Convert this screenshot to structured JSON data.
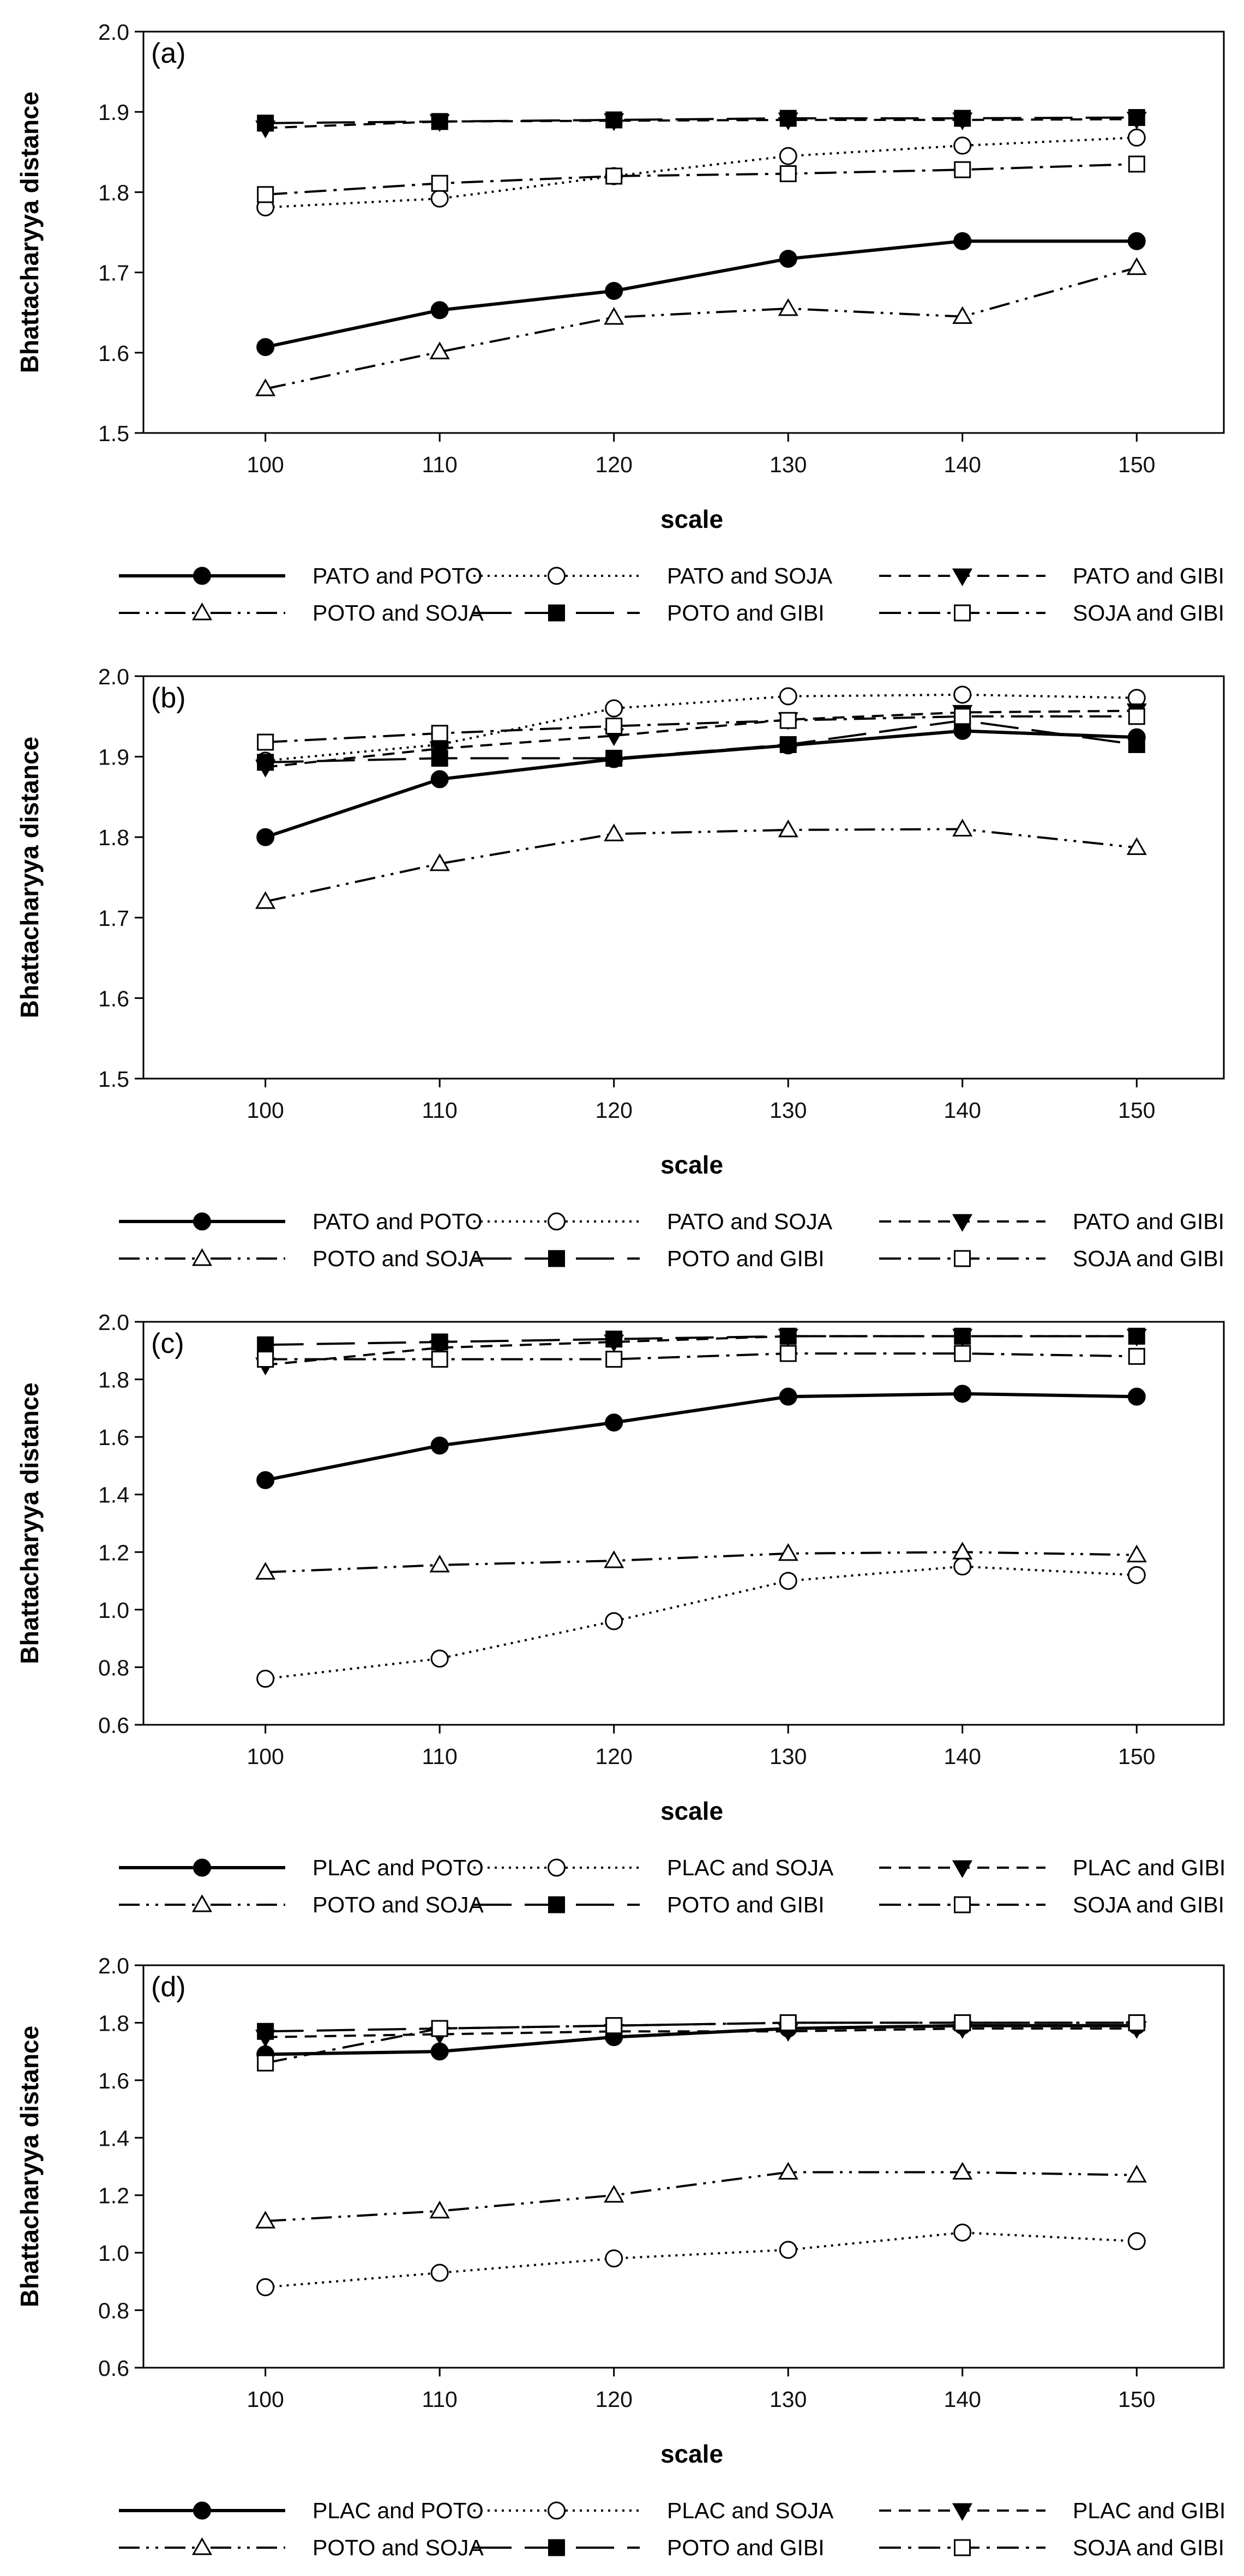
{
  "chart_data": [
    {
      "type": "line",
      "panel_label": "(a)",
      "xlabel": "scale",
      "ylabel": "Bhattacharyya distance",
      "x": [
        100,
        110,
        120,
        130,
        140,
        150
      ],
      "xlim": [
        93,
        155
      ],
      "ylim": [
        1.5,
        2.0
      ],
      "yticks": [
        1.5,
        1.6,
        1.7,
        1.8,
        1.9,
        2.0
      ],
      "ytick_labels": [
        "1.5",
        "1.6",
        "1.7",
        "1.8",
        "1.9",
        "2.0"
      ],
      "xticks": [
        100,
        110,
        120,
        130,
        140,
        150
      ],
      "xtick_labels": [
        "100",
        "110",
        "120",
        "130",
        "140",
        "150"
      ],
      "legend_position": "bottom",
      "series": [
        {
          "name": "PATO and POTO",
          "values": [
            1.607,
            1.653,
            1.677,
            1.717,
            1.739,
            1.739
          ],
          "marker": "filled-circle",
          "dash": "solid"
        },
        {
          "name": "PATO and SOJA",
          "values": [
            1.781,
            1.792,
            1.82,
            1.845,
            1.858,
            1.868
          ],
          "marker": "open-circle",
          "dash": "dotted"
        },
        {
          "name": "PATO and GIBI",
          "values": [
            1.88,
            1.888,
            1.889,
            1.89,
            1.89,
            1.891
          ],
          "marker": "filled-triangle-down",
          "dash": "short-dash"
        },
        {
          "name": "POTO and SOJA",
          "values": [
            1.555,
            1.601,
            1.644,
            1.655,
            1.645,
            1.706
          ],
          "marker": "open-triangle-up",
          "dash": "dash-dot-dot"
        },
        {
          "name": "POTO and GIBI",
          "values": [
            1.886,
            1.888,
            1.89,
            1.892,
            1.892,
            1.893
          ],
          "marker": "filled-square",
          "dash": "long-dash"
        },
        {
          "name": "SOJA and GIBI",
          "values": [
            1.797,
            1.811,
            1.82,
            1.823,
            1.828,
            1.835
          ],
          "marker": "open-square",
          "dash": "dash-dot"
        }
      ]
    },
    {
      "type": "line",
      "panel_label": "(b)",
      "xlabel": "scale",
      "ylabel": "Bhattacharyya distance",
      "x": [
        100,
        110,
        120,
        130,
        140,
        150
      ],
      "xlim": [
        93,
        155
      ],
      "ylim": [
        1.5,
        2.0
      ],
      "yticks": [
        1.5,
        1.6,
        1.7,
        1.8,
        1.9,
        2.0
      ],
      "ytick_labels": [
        "1.5",
        "1.6",
        "1.7",
        "1.8",
        "1.9",
        "2.0"
      ],
      "xticks": [
        100,
        110,
        120,
        130,
        140,
        150
      ],
      "xtick_labels": [
        "100",
        "110",
        "120",
        "130",
        "140",
        "150"
      ],
      "legend_position": "bottom",
      "series": [
        {
          "name": "PATO and POTO",
          "values": [
            1.8,
            1.872,
            1.897,
            1.914,
            1.932,
            1.924
          ],
          "marker": "filled-circle",
          "dash": "solid"
        },
        {
          "name": "PATO and SOJA",
          "values": [
            1.895,
            1.915,
            1.96,
            1.975,
            1.977,
            1.973
          ],
          "marker": "open-circle",
          "dash": "dotted"
        },
        {
          "name": "PATO and GIBI",
          "values": [
            1.887,
            1.91,
            1.926,
            1.946,
            1.955,
            1.957
          ],
          "marker": "filled-triangle-down",
          "dash": "short-dash"
        },
        {
          "name": "POTO and SOJA",
          "values": [
            1.72,
            1.767,
            1.804,
            1.809,
            1.81,
            1.787
          ],
          "marker": "open-triangle-up",
          "dash": "dash-dot-dot"
        },
        {
          "name": "POTO and GIBI",
          "values": [
            1.893,
            1.898,
            1.898,
            1.915,
            1.945,
            1.915
          ],
          "marker": "filled-square",
          "dash": "long-dash"
        },
        {
          "name": "SOJA and GIBI",
          "values": [
            1.918,
            1.929,
            1.938,
            1.945,
            1.95,
            1.95
          ],
          "marker": "open-square",
          "dash": "dash-dot"
        }
      ]
    },
    {
      "type": "line",
      "panel_label": "(c)",
      "xlabel": "scale",
      "ylabel": "Bhattacharyya distance",
      "x": [
        100,
        110,
        120,
        130,
        140,
        150
      ],
      "xlim": [
        93,
        155
      ],
      "ylim": [
        0.6,
        2.0
      ],
      "yticks": [
        0.6,
        0.8,
        1.0,
        1.2,
        1.4,
        1.6,
        1.8,
        2.0
      ],
      "ytick_labels": [
        "0.6",
        "0.8",
        "1.0",
        "1.2",
        "1.4",
        "1.6",
        "1.8",
        "2.0"
      ],
      "xticks": [
        100,
        110,
        120,
        130,
        140,
        150
      ],
      "xtick_labels": [
        "100",
        "110",
        "120",
        "130",
        "140",
        "150"
      ],
      "legend_position": "bottom",
      "series": [
        {
          "name": "PLAC and POTO",
          "values": [
            1.45,
            1.57,
            1.65,
            1.74,
            1.75,
            1.74
          ],
          "marker": "filled-circle",
          "dash": "solid"
        },
        {
          "name": "PLAC and SOJA",
          "values": [
            0.76,
            0.83,
            0.96,
            1.1,
            1.15,
            1.12
          ],
          "marker": "open-circle",
          "dash": "dotted"
        },
        {
          "name": "PLAC and GIBI",
          "values": [
            1.85,
            1.91,
            1.93,
            1.95,
            1.95,
            1.95
          ],
          "marker": "filled-triangle-down",
          "dash": "short-dash"
        },
        {
          "name": "POTO and SOJA",
          "values": [
            1.13,
            1.155,
            1.17,
            1.195,
            1.2,
            1.19
          ],
          "marker": "open-triangle-up",
          "dash": "dash-dot-dot"
        },
        {
          "name": "POTO and GIBI",
          "values": [
            1.92,
            1.93,
            1.94,
            1.95,
            1.95,
            1.95
          ],
          "marker": "filled-square",
          "dash": "long-dash"
        },
        {
          "name": "SOJA and GIBI",
          "values": [
            1.87,
            1.87,
            1.87,
            1.89,
            1.89,
            1.88
          ],
          "marker": "open-square",
          "dash": "dash-dot"
        }
      ]
    },
    {
      "type": "line",
      "panel_label": "(d)",
      "xlabel": "scale",
      "ylabel": "Bhattacharyya distance",
      "x": [
        100,
        110,
        120,
        130,
        140,
        150
      ],
      "xlim": [
        93,
        155
      ],
      "ylim": [
        0.6,
        2.0
      ],
      "yticks": [
        0.6,
        0.8,
        1.0,
        1.2,
        1.4,
        1.6,
        1.8,
        2.0
      ],
      "ytick_labels": [
        "0.6",
        "0.8",
        "1.0",
        "1.2",
        "1.4",
        "1.6",
        "1.8",
        "2.0"
      ],
      "xticks": [
        100,
        110,
        120,
        130,
        140,
        150
      ],
      "xtick_labels": [
        "100",
        "110",
        "120",
        "130",
        "140",
        "150"
      ],
      "legend_position": "bottom",
      "series": [
        {
          "name": "PLAC and POTO",
          "values": [
            1.69,
            1.7,
            1.75,
            1.78,
            1.79,
            1.79
          ],
          "marker": "filled-circle",
          "dash": "solid"
        },
        {
          "name": "PLAC and SOJA",
          "values": [
            0.88,
            0.93,
            0.98,
            1.01,
            1.07,
            1.04
          ],
          "marker": "open-circle",
          "dash": "dotted"
        },
        {
          "name": "PLAC and GIBI",
          "values": [
            1.75,
            1.76,
            1.77,
            1.77,
            1.78,
            1.78
          ],
          "marker": "filled-triangle-down",
          "dash": "short-dash"
        },
        {
          "name": "POTO and SOJA",
          "values": [
            1.11,
            1.145,
            1.2,
            1.28,
            1.28,
            1.27
          ],
          "marker": "open-triangle-up",
          "dash": "dash-dot-dot"
        },
        {
          "name": "POTO and GIBI",
          "values": [
            1.77,
            1.78,
            1.79,
            1.8,
            1.8,
            1.8
          ],
          "marker": "filled-square",
          "dash": "long-dash"
        },
        {
          "name": "SOJA and GIBI",
          "values": [
            1.66,
            1.78,
            1.79,
            1.8,
            1.8,
            1.8
          ],
          "marker": "open-square",
          "dash": "dash-dot"
        }
      ]
    }
  ]
}
